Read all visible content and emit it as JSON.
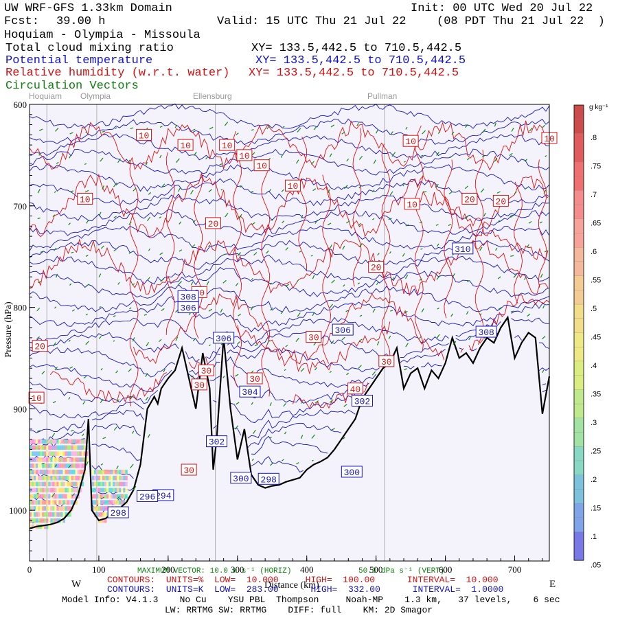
{
  "header": {
    "model": "UW WRF-GFS 1.33km Domain",
    "init": "Init: 00 UTC Wed 20 Jul 22",
    "fcst_label": "Fcst:",
    "fcst_value": "39.00 h",
    "valid": "Valid: 15 UTC Thu 21 Jul 22",
    "valid_local": "(08 PDT Thu 21 Jul 22  )",
    "route": "Hoquiam - Olympia - Missoula",
    "field1": "Total cloud mixing ratio",
    "field1_xy": "XY= 133.5,442.5 to 710.5,442.5",
    "field2": "Potential temperature",
    "field2_xy": "XY= 133.5,442.5 to 710.5,442.5",
    "field3": "Relative humidity (w.r.t. water)",
    "field3_xy": "XY= 133.5,442.5 to 710.5,442.5",
    "field4": "Circulation Vectors"
  },
  "places": [
    "Hoquiam",
    "Olympia",
    "Ellensburg",
    "Pullman"
  ],
  "chart_data": {
    "type": "cross-section",
    "title": "Hoquiam - Olympia - Missoula",
    "xlabel": "Distance (km)",
    "ylabel": "Pressure (hPa)",
    "xlim": [
      0,
      750
    ],
    "ylim": [
      1050,
      600
    ],
    "x_ticks": [
      "0",
      "100",
      "200",
      "300",
      "400",
      "500",
      "600",
      "700"
    ],
    "x_tick_values": [
      0,
      100,
      200,
      300,
      400,
      500,
      600,
      700
    ],
    "y_ticks": [
      "600",
      "700",
      "800",
      "900",
      "1000"
    ],
    "y_tick_values": [
      600,
      700,
      800,
      900,
      1000
    ],
    "x_end_labels": {
      "left": "W",
      "right": "E"
    },
    "place_markers_km": [
      25,
      97,
      268,
      512
    ],
    "terrain": {
      "x": [
        0,
        10,
        20,
        30,
        40,
        50,
        60,
        70,
        80,
        85,
        90,
        100,
        110,
        120,
        130,
        140,
        150,
        160,
        170,
        180,
        185,
        190,
        200,
        210,
        220,
        230,
        240,
        250,
        260,
        265,
        270,
        280,
        290,
        300,
        310,
        320,
        330,
        340,
        350,
        360,
        370,
        380,
        390,
        400,
        410,
        420,
        430,
        440,
        450,
        460,
        470,
        480,
        490,
        500,
        510,
        520,
        530,
        540,
        550,
        560,
        570,
        580,
        590,
        600,
        610,
        620,
        630,
        640,
        650,
        660,
        670,
        680,
        690,
        700,
        710,
        720,
        730,
        740,
        750
      ],
      "p": [
        1018,
        1016,
        1015,
        1014,
        1012,
        1008,
        1000,
        985,
        960,
        910,
        1000,
        1010,
        1008,
        1003,
        998,
        992,
        980,
        955,
        900,
        888,
        895,
        880,
        870,
        862,
        840,
        870,
        900,
        845,
        880,
        960,
        930,
        830,
        900,
        950,
        920,
        965,
        975,
        978,
        976,
        975,
        972,
        970,
        968,
        960,
        955,
        952,
        948,
        940,
        930,
        920,
        910,
        890,
        880,
        870,
        860,
        855,
        840,
        880,
        865,
        860,
        880,
        862,
        870,
        855,
        830,
        850,
        845,
        855,
        840,
        830,
        835,
        820,
        810,
        850,
        835,
        825,
        830,
        905,
        868
      ]
    },
    "rh_contour_labels": [
      "10",
      "10",
      "10",
      "10",
      "10",
      "10",
      "10",
      "10",
      "10",
      "10",
      "20",
      "20",
      "20",
      "20",
      "20",
      "20",
      "30",
      "30",
      "30",
      "30",
      "30",
      "40",
      "10",
      "30"
    ],
    "theta_contour_labels": [
      "310",
      "308",
      "306",
      "306",
      "306",
      "308",
      "304",
      "302",
      "302",
      "300",
      "300",
      "298",
      "294",
      "298",
      "296"
    ],
    "colorbar": {
      "unit": "g kg⁻¹",
      "labels": [
        ".8",
        ".75",
        ".7",
        ".65",
        ".6",
        ".55",
        ".5",
        ".45",
        ".4",
        ".35",
        ".3",
        ".25",
        ".2",
        ".15",
        ".1",
        ".05"
      ]
    },
    "vector_info": {
      "label1": "MAXIMUM VECTOR: 10.0 m s⁻¹ (HORIZ)",
      "label2": "50.0 dPa s⁻¹ (VERT)"
    },
    "colors": {
      "rh": "#dd1111",
      "theta": "#1414c8",
      "vectors": "#118811",
      "terrain": "#000000",
      "plot_bg": "#f4f3fb"
    }
  },
  "footer": {
    "rh_contours": "CONTOURS:  UNITS=%  LOW=  10.000     HIGH=  100.00      INTERVAL=  10.000",
    "theta_contours": "CONTOURS:  UNITS=K  LOW=  283.00      HIGH=  332.00      INTERVAL=  1.0000",
    "model_info": "Model Info: V4.1.3    No Cu    YSU PBL  Thompson     Noah-MP    1.3 km,   37 levels,    6 sec",
    "model_info2": "LW: RRTMG SW: RRTMG    DIFF: full    KM: 2D Smagor"
  }
}
